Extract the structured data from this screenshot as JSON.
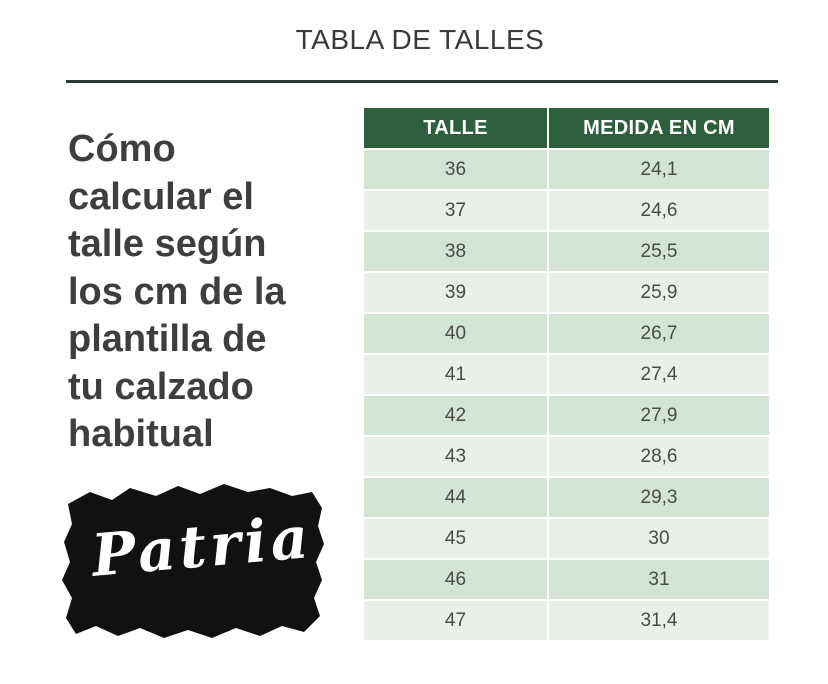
{
  "title": "TABLA DE TALLES",
  "heading": "Cómo\ncalcular el\ntalle según\nlos cm de la\nplantilla de\ntu calzado\nhabitual",
  "brand": {
    "name": "Patria",
    "logo_color": "#111111"
  },
  "table": {
    "header_color": "#2d5f3d",
    "row_colors": [
      "#d3e3d4",
      "#e8f0e8"
    ],
    "headers": [
      "TALLE",
      "MEDIDA EN CM"
    ],
    "rows": [
      [
        "36",
        "24,1"
      ],
      [
        "37",
        "24,6"
      ],
      [
        "38",
        "25,5"
      ],
      [
        "39",
        "25,9"
      ],
      [
        "40",
        "26,7"
      ],
      [
        "41",
        "27,4"
      ],
      [
        "42",
        "27,9"
      ],
      [
        "43",
        "28,6"
      ],
      [
        "44",
        "29,3"
      ],
      [
        "45",
        "30"
      ],
      [
        "46",
        "31"
      ],
      [
        "47",
        "31,4"
      ]
    ]
  }
}
